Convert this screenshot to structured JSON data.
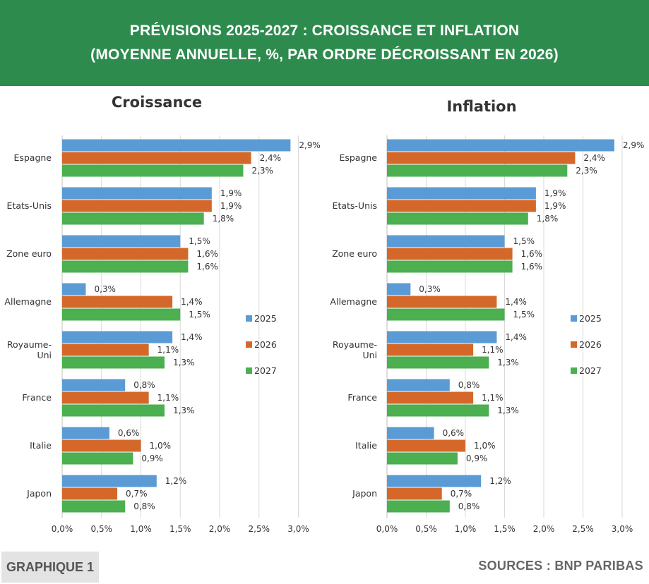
{
  "header": {
    "title_line1": "PRÉVISIONS 2025-2027 : CROISSANCE ET INFLATION",
    "title_line2": "(MOYENNE ANNUELLE, %, PAR ORDRE DÉCROISSANT EN 2026)"
  },
  "colors": {
    "header_bg": "#2e8b4e",
    "series_2025": "#5b9bd5",
    "series_2026": "#d4682a",
    "series_2027": "#4caf50"
  },
  "chart_data": [
    {
      "type": "bar",
      "orientation": "horizontal",
      "title": "Croissance",
      "categories": [
        "Espagne",
        "Etats-Unis",
        "Zone euro",
        "Allemagne",
        "Royaume-Uni",
        "France",
        "Italie",
        "Japon"
      ],
      "series": [
        {
          "name": "2025",
          "values": [
            2.9,
            1.9,
            1.5,
            0.3,
            1.4,
            0.8,
            0.6,
            1.2
          ],
          "labels": [
            "2,9%",
            "1,9%",
            "1,5%",
            "0,3%",
            "1,4%",
            "0,8%",
            "0,6%",
            "1,2%"
          ]
        },
        {
          "name": "2026",
          "values": [
            2.4,
            1.9,
            1.6,
            1.4,
            1.1,
            1.1,
            1.0,
            0.7
          ],
          "labels": [
            "2,4%",
            "1,9%",
            "1,6%",
            "1,4%",
            "1,1%",
            "1,1%",
            "1,0%",
            "0,7%"
          ]
        },
        {
          "name": "2027",
          "values": [
            2.3,
            1.8,
            1.6,
            1.5,
            1.3,
            1.3,
            0.9,
            0.8
          ],
          "labels": [
            "2,3%",
            "1,8%",
            "1,6%",
            "1,5%",
            "1,3%",
            "1,3%",
            "0,9%",
            "0,8%"
          ]
        }
      ],
      "xlim": [
        0,
        3.0
      ],
      "xticks": [
        0,
        0.5,
        1.0,
        1.5,
        2.0,
        2.5,
        3.0
      ],
      "xtick_labels": [
        "0,0%",
        "0,5%",
        "1,0%",
        "1,5%",
        "2,0%",
        "2,5%",
        "3,0%"
      ],
      "grid": "vertical",
      "legend": "right"
    },
    {
      "type": "bar",
      "orientation": "horizontal",
      "title": "Inflation",
      "categories": [
        "Espagne",
        "Etats-Unis",
        "Zone euro",
        "Allemagne",
        "Royaume-Uni",
        "France",
        "Italie",
        "Japon"
      ],
      "series": [
        {
          "name": "2025",
          "values": [
            2.9,
            1.9,
            1.5,
            0.3,
            1.4,
            0.8,
            0.6,
            1.2
          ],
          "labels": [
            "2,9%",
            "1,9%",
            "1,5%",
            "0,3%",
            "1,4%",
            "0,8%",
            "0,6%",
            "1,2%"
          ]
        },
        {
          "name": "2026",
          "values": [
            2.4,
            1.9,
            1.6,
            1.4,
            1.1,
            1.1,
            1.0,
            0.7
          ],
          "labels": [
            "2,4%",
            "1,9%",
            "1,6%",
            "1,4%",
            "1,1%",
            "1,1%",
            "1,0%",
            "0,7%"
          ]
        },
        {
          "name": "2027",
          "values": [
            2.3,
            1.8,
            1.6,
            1.5,
            1.3,
            1.3,
            0.9,
            0.8
          ],
          "labels": [
            "2,3%",
            "1,8%",
            "1,6%",
            "1,5%",
            "1,3%",
            "1,3%",
            "0,9%",
            "0,8%"
          ]
        }
      ],
      "xlim": [
        0,
        3.0
      ],
      "xticks": [
        0,
        0.5,
        1.0,
        1.5,
        2.0,
        2.5,
        3.0
      ],
      "xtick_labels": [
        "0,0%",
        "0,5%",
        "1,0%",
        "1,5%",
        "2,0%",
        "2,5%",
        "3,0%"
      ],
      "grid": "vertical",
      "legend": "right"
    }
  ],
  "footer": {
    "graph_label": "GRAPHIQUE 1",
    "sources": "SOURCES :  BNP PARIBAS"
  }
}
